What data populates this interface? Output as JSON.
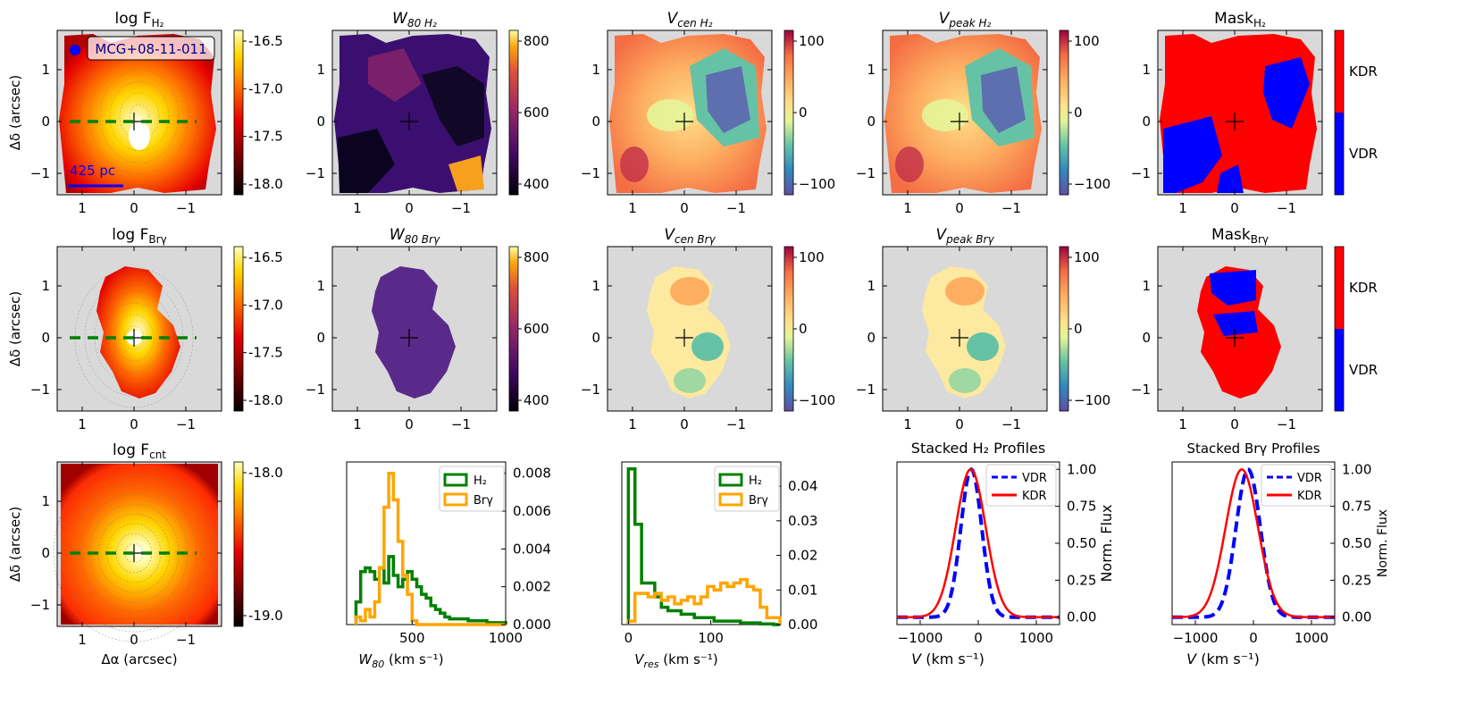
{
  "figure": {
    "object_label": "MCG+08-11-011",
    "scalebar_label": "425 pc"
  },
  "colors": {
    "h2": "#008000",
    "brg": "#ffa500",
    "vdr": "#0000ff",
    "kdr": "#ff0000",
    "nodata": "#d9d9d9"
  },
  "maps": {
    "row1": [
      {
        "title_main": "log F",
        "title_sub": "H₂",
        "cmap": "flux",
        "cbar_ticks": [
          "-16.5",
          "-17.0",
          "-17.5",
          "-18.0"
        ]
      },
      {
        "title_main": "W",
        "title_sub": "80 H₂",
        "cmap": "inferno",
        "cbar_ticks": [
          "800",
          "600",
          "400"
        ]
      },
      {
        "title_main": "V",
        "title_sub": "cen H₂",
        "cmap": "spectral",
        "cbar_ticks": [
          "100",
          "0",
          "−100"
        ]
      },
      {
        "title_main": "V",
        "title_sub": "peak H₂",
        "cmap": "spectral",
        "cbar_ticks": [
          "100",
          "0",
          "−100"
        ]
      },
      {
        "title_main": "Mask",
        "title_sub": "H₂",
        "cmap": "mask",
        "cbar_ticks": [
          "KDR",
          "VDR"
        ]
      }
    ],
    "row2": [
      {
        "title_main": "log F",
        "title_sub": "Brγ",
        "cmap": "flux",
        "cbar_ticks": [
          "-16.5",
          "-17.0",
          "-17.5",
          "-18.0"
        ]
      },
      {
        "title_main": "W",
        "title_sub": "80 Brγ",
        "cmap": "inferno",
        "cbar_ticks": [
          "800",
          "600",
          "400"
        ]
      },
      {
        "title_main": "V",
        "title_sub": "cen Brγ",
        "cmap": "spectral",
        "cbar_ticks": [
          "100",
          "0",
          "−100"
        ]
      },
      {
        "title_main": "V",
        "title_sub": "peak Brγ",
        "cmap": "spectral",
        "cbar_ticks": [
          "100",
          "0",
          "−100"
        ]
      },
      {
        "title_main": "Mask",
        "title_sub": "Brγ",
        "cmap": "mask",
        "cbar_ticks": [
          "KDR",
          "VDR"
        ]
      }
    ],
    "cont": {
      "title_main": "log F",
      "title_sub": "cnt",
      "cmap": "flux",
      "cbar_ticks": [
        "-18.0",
        "-19.0"
      ]
    },
    "x_ticks": [
      "1",
      "0",
      "−1"
    ],
    "y_ticks": [
      "1",
      "0",
      "−1"
    ],
    "ylabel": "Δδ (arcsec)",
    "xlabel": "Δα (arcsec)"
  },
  "chart_data": [
    {
      "type": "histogram",
      "title": "",
      "xlabel": "W80 (km s⁻¹)",
      "xlim": [
        150,
        1000
      ],
      "ylim": [
        0,
        0.0086
      ],
      "x_ticks": [
        "500",
        "1000"
      ],
      "y_ticks": [
        "0.008",
        "0.006",
        "0.004",
        "0.002",
        "0.000"
      ],
      "bin_edges": [
        200,
        225,
        250,
        275,
        300,
        325,
        350,
        375,
        400,
        425,
        450,
        475,
        500,
        525,
        550,
        575,
        600,
        625,
        650,
        675,
        700,
        750,
        800,
        850,
        900,
        950,
        1000
      ],
      "series": [
        {
          "name": "H₂",
          "values": [
            0.0012,
            0.0028,
            0.003,
            0.0028,
            0.0024,
            0.003,
            0.0022,
            0.0036,
            0.0026,
            0.002,
            0.0024,
            0.0028,
            0.0024,
            0.002,
            0.0016,
            0.0014,
            0.001,
            0.0008,
            0.0006,
            0.0004,
            0.0003,
            0.0003,
            0.0002,
            0.0002,
            0.0001,
            0.0001
          ]
        },
        {
          "name": "Brγ",
          "values": [
            0.0004,
            0.0002,
            0.0008,
            0.0004,
            0.0012,
            0.003,
            0.0062,
            0.008,
            0.0066,
            0.0044,
            0.0026,
            0.0016,
            0.0002,
            0.0,
            0.0,
            0.0,
            0.0,
            0.0,
            0.0,
            0.0,
            0.0,
            0.0,
            0.0,
            0.0,
            0.0,
            0.0
          ]
        }
      ]
    },
    {
      "type": "histogram",
      "title": "",
      "xlabel": "Vres (km s⁻¹)",
      "xlim": [
        -8,
        185
      ],
      "ylim": [
        0,
        0.047
      ],
      "x_ticks": [
        "0",
        "100"
      ],
      "y_ticks": [
        "0.04",
        "0.03",
        "0.02",
        "0.01",
        "0.00"
      ],
      "bin_edges": [
        0,
        8,
        16,
        24,
        32,
        40,
        48,
        56,
        64,
        72,
        80,
        88,
        96,
        104,
        112,
        120,
        128,
        136,
        144,
        152,
        160,
        168,
        176,
        184
      ],
      "series": [
        {
          "name": "H₂",
          "values": [
            0.045,
            0.029,
            0.012,
            0.012,
            0.008,
            0.005,
            0.004,
            0.004,
            0.003,
            0.003,
            0.002,
            0.002,
            0.002,
            0.001,
            0.001,
            0.001,
            0.001,
            0.0005,
            0.0005,
            0.0005,
            0.0002,
            0.0002,
            0.0
          ]
        },
        {
          "name": "Brγ",
          "values": [
            0.001,
            0.009,
            0.009,
            0.008,
            0.009,
            0.007,
            0.008,
            0.006,
            0.007,
            0.008,
            0.006,
            0.008,
            0.011,
            0.01,
            0.012,
            0.011,
            0.012,
            0.013,
            0.011,
            0.01,
            0.005,
            0.002,
            0.002
          ]
        }
      ]
    },
    {
      "type": "line",
      "title": "Stacked H₂ Profiles",
      "xlabel": "V (km s⁻¹)",
      "ylabel": "Norm. Flux",
      "xlim": [
        -1400,
        1400
      ],
      "ylim": [
        -0.05,
        1.05
      ],
      "x_ticks": [
        "−1000",
        "0",
        "1000"
      ],
      "y_ticks": [
        "1.00",
        "0.75",
        "0.50",
        "0.25",
        "0.00"
      ],
      "series": [
        {
          "name": "VDR",
          "style": "dashed",
          "center": -120,
          "sigma": 180
        },
        {
          "name": "KDR",
          "style": "solid",
          "center": -130,
          "sigma": 260
        }
      ]
    },
    {
      "type": "line",
      "title": "Stacked Brγ Profiles",
      "xlabel": "V (km s⁻¹)",
      "ylabel": "Norm. Flux",
      "xlim": [
        -1400,
        1400
      ],
      "ylim": [
        -0.05,
        1.05
      ],
      "x_ticks": [
        "−1000",
        "0",
        "1000"
      ],
      "y_ticks": [
        "1.00",
        "0.75",
        "0.50",
        "0.25",
        "0.00"
      ],
      "series": [
        {
          "name": "VDR",
          "style": "dashed",
          "center": -90,
          "sigma": 210
        },
        {
          "name": "KDR",
          "style": "solid",
          "center": -200,
          "sigma": 280
        }
      ]
    }
  ]
}
